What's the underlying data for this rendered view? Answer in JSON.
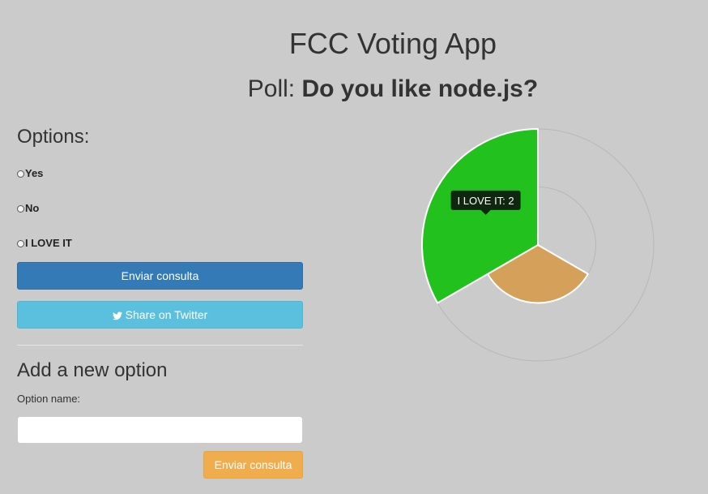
{
  "header": {
    "app_title": "FCC Voting App",
    "poll_prefix": "Poll: ",
    "poll_question": "Do you like node.js?"
  },
  "options_section": {
    "heading": "Options:",
    "options": [
      {
        "label": "Yes"
      },
      {
        "label": "No"
      },
      {
        "label": "I LOVE IT"
      }
    ],
    "submit_label": "Enviar consulta",
    "twitter_label": "Share on Twitter"
  },
  "add_option": {
    "heading": "Add a new option",
    "field_label": "Option name:",
    "input_value": "",
    "submit_label": "Enviar consulta"
  },
  "chart_data": {
    "type": "pie",
    "style": "polar-area",
    "series": [
      {
        "name": "Yes",
        "value": 0,
        "color": "#46bfbd"
      },
      {
        "name": "No",
        "value": 1,
        "color": "#d4a05a"
      },
      {
        "name": "I LOVE IT",
        "value": 2,
        "color": "#22c11d"
      }
    ],
    "scale_max": 2,
    "gridlines": [
      1,
      2
    ],
    "tooltip": {
      "series": "I LOVE IT",
      "text": "I LOVE IT: 2"
    }
  },
  "colors": {
    "background": "#cbcbcb",
    "primary": "#337ab7",
    "info": "#5bc0de",
    "warning": "#f0ad4e"
  }
}
